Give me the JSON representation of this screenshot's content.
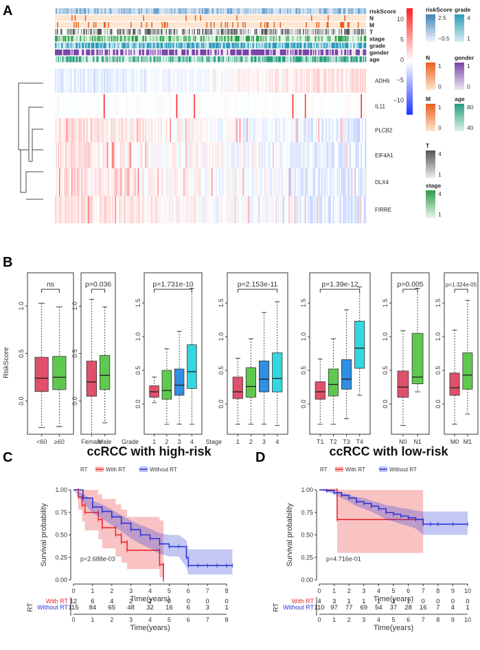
{
  "panels": {
    "a": "A",
    "b": "B",
    "c": "C",
    "d": "D"
  },
  "chart_data": [
    {
      "type": "heatmap",
      "annotation_tracks": [
        "riskScore",
        "N",
        "M",
        "T",
        "stage",
        "grade",
        "gender",
        "age"
      ],
      "genes": [
        "ADH6",
        "IL11",
        "PLCB2",
        "EIF4A1",
        "DLX4",
        "FIRRE"
      ],
      "color_key": {
        "ticks": [
          "10",
          "5",
          "0",
          "−5",
          "−10"
        ],
        "min": -10,
        "max": 10,
        "colors": [
          "#1f35ff",
          "#ffffff",
          "#ff2020"
        ]
      },
      "legends": [
        {
          "title": "riskScore",
          "labels": [
            "2.5",
            "−0.5"
          ],
          "colors": [
            "#3d84b8",
            "#f4f4fb"
          ]
        },
        {
          "title": "grade",
          "labels": [
            "4",
            "1"
          ],
          "colors": [
            "#2b9ab8",
            "#d9eef3"
          ]
        },
        {
          "title": "N",
          "labels": [
            "1",
            "0"
          ],
          "colors": [
            "#e8601c",
            "#fde6d2"
          ]
        },
        {
          "title": "gender",
          "labels": [
            "1",
            "0"
          ],
          "colors": [
            "#7a45a8",
            "#efe6f5"
          ]
        },
        {
          "title": "M",
          "labels": [
            "1",
            "0"
          ],
          "colors": [
            "#e8601c",
            "#fde6d2"
          ]
        },
        {
          "title": "age",
          "labels": [
            "80",
            "40"
          ],
          "colors": [
            "#2a9d7e",
            "#dff2ec"
          ]
        },
        {
          "title": "T",
          "labels": [
            "4",
            "1"
          ],
          "colors": [
            "#555555",
            "#ececec"
          ]
        },
        {
          "title": "stage",
          "labels": [
            "4",
            "1"
          ],
          "colors": [
            "#2e9c4a",
            "#e6f5e9"
          ]
        }
      ]
    },
    {
      "type": "box",
      "ylabel": "RiskScore",
      "groups": [
        {
          "pvalue": "ns",
          "categories": [
            "<60",
            "≥60"
          ],
          "xlabel": "",
          "ylim": [
            -0.35,
            1.35
          ],
          "yticks": [
            0.0,
            0.5,
            1.0
          ],
          "ytick_labels": [
            "0.0",
            "0.5",
            "1.0"
          ],
          "boxes": [
            {
              "q1": 0.1,
              "median": 0.24,
              "q3": 0.46,
              "low": -0.28,
              "high": 1.03,
              "color": "#e0506a"
            },
            {
              "q1": 0.12,
              "median": 0.25,
              "q3": 0.47,
              "low": -0.27,
              "high": 0.99,
              "color": "#5fc94f"
            }
          ]
        },
        {
          "pvalue": "p=0.036",
          "categories": [
            "Female",
            "Male"
          ],
          "xlabel": "",
          "ylim": [
            -0.35,
            1.35
          ],
          "yticks": [
            0.0,
            0.5,
            1.0
          ],
          "ytick_labels": [
            "0.0",
            "0.5",
            "1.0"
          ],
          "boxes": [
            {
              "q1": 0.05,
              "median": 0.2,
              "q3": 0.42,
              "low": -0.35,
              "high": 1.07,
              "color": "#e0506a"
            },
            {
              "q1": 0.12,
              "median": 0.27,
              "q3": 0.48,
              "low": -0.23,
              "high": 0.99,
              "color": "#5fc94f"
            }
          ]
        },
        {
          "pvalue": "p=1.731e-10",
          "categories": [
            "1",
            "2",
            "3",
            "4"
          ],
          "xlabel": "Grade",
          "ylim": [
            -0.45,
            1.95
          ],
          "yticks": [
            0.0,
            0.5,
            1.0,
            1.5
          ],
          "ytick_labels": [
            "0.0",
            "0.5",
            "1.0",
            "1.5"
          ],
          "boxes": [
            {
              "q1": 0.1,
              "median": 0.18,
              "q3": 0.27,
              "low": 0.02,
              "high": 0.4,
              "color": "#e0506a"
            },
            {
              "q1": 0.07,
              "median": 0.2,
              "q3": 0.5,
              "low": -0.3,
              "high": 0.82,
              "color": "#5fc94f"
            },
            {
              "q1": 0.13,
              "median": 0.28,
              "q3": 0.52,
              "low": -0.3,
              "high": 1.08,
              "color": "#2f8fe0"
            },
            {
              "q1": 0.23,
              "median": 0.48,
              "q3": 0.88,
              "low": -0.3,
              "high": 1.72,
              "color": "#33d7e0"
            }
          ]
        },
        {
          "pvalue": "p=2.153e-11",
          "categories": [
            "1",
            "2",
            "3",
            "4"
          ],
          "xlabel": "Stage",
          "ylim": [
            -0.45,
            1.95
          ],
          "yticks": [
            0.0,
            0.5,
            1.0,
            1.5
          ],
          "ytick_labels": [
            "0.0",
            "0.5",
            "1.0",
            "1.5"
          ],
          "boxes": [
            {
              "q1": 0.08,
              "median": 0.18,
              "q3": 0.4,
              "low": -0.3,
              "high": 0.68,
              "color": "#e0506a"
            },
            {
              "q1": 0.1,
              "median": 0.26,
              "q3": 0.54,
              "low": -0.3,
              "high": 0.97,
              "color": "#5fc94f"
            },
            {
              "q1": 0.18,
              "median": 0.37,
              "q3": 0.64,
              "low": -0.3,
              "high": 1.36,
              "color": "#2f8fe0"
            },
            {
              "q1": 0.18,
              "median": 0.38,
              "q3": 0.76,
              "low": -0.32,
              "high": 1.52,
              "color": "#33d7e0"
            }
          ]
        },
        {
          "pvalue": "p=1.39e-12",
          "categories": [
            "T1",
            "T2",
            "T3",
            "T4"
          ],
          "xlabel": "",
          "ylim": [
            -0.45,
            1.95
          ],
          "yticks": [
            0.0,
            0.5,
            1.0,
            1.5
          ],
          "ytick_labels": [
            "0.0",
            "0.5",
            "1.0",
            "1.5"
          ],
          "boxes": [
            {
              "q1": 0.07,
              "median": 0.18,
              "q3": 0.33,
              "low": -0.3,
              "high": 0.67,
              "color": "#e0506a"
            },
            {
              "q1": 0.12,
              "median": 0.29,
              "q3": 0.52,
              "low": -0.3,
              "high": 0.97,
              "color": "#5fc94f"
            },
            {
              "q1": 0.22,
              "median": 0.37,
              "q3": 0.66,
              "low": -0.22,
              "high": 1.4,
              "color": "#2f8fe0"
            },
            {
              "q1": 0.53,
              "median": 0.83,
              "q3": 1.23,
              "low": 0.13,
              "high": 1.74,
              "color": "#33d7e0"
            }
          ]
        },
        {
          "pvalue": "p=0.005",
          "categories": [
            "N0",
            "N1"
          ],
          "xlabel": "",
          "ylim": [
            -0.45,
            1.95
          ],
          "yticks": [
            0.0,
            0.5,
            1.0,
            1.5
          ],
          "ytick_labels": [
            "0.0",
            "0.5",
            "1.0",
            "1.5"
          ],
          "boxes": [
            {
              "q1": 0.1,
              "median": 0.25,
              "q3": 0.49,
              "low": -0.32,
              "high": 1.09,
              "color": "#e0506a"
            },
            {
              "q1": 0.3,
              "median": 0.4,
              "q3": 1.05,
              "low": 0.18,
              "high": 1.72,
              "color": "#5fc94f"
            }
          ]
        },
        {
          "pvalue": "p=1.324e-05",
          "categories": [
            "M0",
            "M1"
          ],
          "xlabel": "",
          "ylim": [
            -0.45,
            1.95
          ],
          "yticks": [
            0.0,
            0.5,
            1.0,
            1.5
          ],
          "ytick_labels": [
            "0.0",
            "0.5",
            "1.0",
            "1.5"
          ],
          "boxes": [
            {
              "q1": 0.13,
              "median": 0.24,
              "q3": 0.46,
              "low": -0.3,
              "high": 1.1,
              "color": "#e0506a"
            },
            {
              "q1": 0.22,
              "median": 0.43,
              "q3": 0.76,
              "low": -0.15,
              "high": 1.54,
              "color": "#5fc94f"
            }
          ]
        }
      ]
    },
    {
      "type": "line",
      "title": "ccRCC with high-risk",
      "legend_title": "RT",
      "xlabel": "Time(years)",
      "ylabel": "Survival probability",
      "xlim": [
        0,
        8
      ],
      "ylim": [
        0,
        1
      ],
      "xticks": [
        0,
        1,
        2,
        3,
        4,
        5,
        6,
        7,
        8
      ],
      "ytick_labels": [
        "0.00",
        "0.25",
        "0.50",
        "0.75",
        "1.00"
      ],
      "pvalue": "p=2.688e-03",
      "series": [
        {
          "name": "With RT",
          "color": "#e8262b",
          "x": [
            0,
            0.25,
            0.25,
            0.45,
            0.45,
            0.6,
            0.6,
            1.3,
            1.3,
            1.5,
            1.5,
            2.2,
            2.2,
            2.5,
            2.5,
            2.8,
            2.8,
            4.5,
            4.5,
            4.7,
            4.7
          ],
          "y": [
            1.0,
            1.0,
            0.92,
            0.92,
            0.83,
            0.83,
            0.75,
            0.75,
            0.67,
            0.67,
            0.58,
            0.58,
            0.5,
            0.5,
            0.42,
            0.42,
            0.33,
            0.33,
            0.17,
            0.17,
            0.0
          ],
          "ci_lower": [
            1.0,
            1.0,
            0.78,
            0.78,
            0.65,
            0.65,
            0.55,
            0.55,
            0.45,
            0.45,
            0.35,
            0.35,
            0.26,
            0.26,
            0.19,
            0.19,
            0.12,
            0.12,
            0.03,
            0.03,
            0.0
          ],
          "ci_upper": [
            1.0,
            1.0,
            1.0,
            1.0,
            1.0,
            1.0,
            1.0,
            1.0,
            0.95,
            0.95,
            0.9,
            0.9,
            0.84,
            0.84,
            0.78,
            0.78,
            0.7,
            0.7,
            0.66,
            0.66,
            0.66
          ]
        },
        {
          "name": "Without RT",
          "color": "#2b35d6",
          "x": [
            0,
            0.5,
            1.0,
            1.5,
            2.0,
            2.5,
            3.0,
            3.5,
            4.0,
            4.5,
            5.0,
            5.5,
            5.9,
            6.0,
            6.5,
            7.0,
            7.5,
            8.0,
            8.3
          ],
          "y": [
            1.0,
            0.91,
            0.81,
            0.76,
            0.7,
            0.63,
            0.56,
            0.5,
            0.46,
            0.4,
            0.37,
            0.37,
            0.25,
            0.16,
            0.16,
            0.16,
            0.16,
            0.16,
            0.16
          ],
          "ci_lower": [
            1.0,
            0.86,
            0.74,
            0.68,
            0.61,
            0.54,
            0.46,
            0.4,
            0.35,
            0.29,
            0.26,
            0.26,
            0.14,
            0.06,
            0.06,
            0.06,
            0.06,
            0.06,
            0.06
          ],
          "ci_upper": [
            1.0,
            0.96,
            0.88,
            0.84,
            0.78,
            0.72,
            0.66,
            0.61,
            0.57,
            0.52,
            0.5,
            0.5,
            0.44,
            0.34,
            0.34,
            0.34,
            0.34,
            0.34,
            0.34
          ]
        }
      ],
      "risk_table": {
        "label": "RT",
        "xlabel": "Time(years)",
        "rows": [
          {
            "name": "With RT",
            "color": "#e8262b",
            "values": [
              "12",
              "6",
              "4",
              "2",
              "2",
              "0",
              "0",
              "0",
              "0"
            ]
          },
          {
            "name": "Without RT",
            "color": "#2b35d6",
            "values": [
              "115",
              "84",
              "65",
              "48",
              "32",
              "16",
              "6",
              "3",
              "1"
            ]
          }
        ]
      }
    },
    {
      "type": "line",
      "title": "ccRCC with low-risk",
      "legend_title": "RT",
      "xlabel": "Time(years)",
      "ylabel": "Survival probability",
      "xlim": [
        0,
        10
      ],
      "ylim": [
        0,
        1
      ],
      "xticks": [
        0,
        1,
        2,
        3,
        4,
        5,
        6,
        7,
        8,
        9,
        10
      ],
      "ytick_labels": [
        "0.00",
        "0.25",
        "0.50",
        "0.75",
        "1.00"
      ],
      "pvalue": "p=4.716e-01",
      "series": [
        {
          "name": "With RT",
          "color": "#e8262b",
          "x": [
            0,
            1.2,
            1.2,
            7.0
          ],
          "y": [
            1.0,
            1.0,
            0.67,
            0.67
          ],
          "ci_lower": [
            1.0,
            1.0,
            0.3,
            0.3
          ],
          "ci_upper": [
            1.0,
            1.0,
            1.0,
            1.0
          ]
        },
        {
          "name": "Without RT",
          "color": "#2b35d6",
          "x": [
            0,
            0.5,
            1.0,
            1.5,
            2.0,
            2.5,
            3.0,
            3.5,
            4.0,
            4.5,
            5.0,
            5.5,
            6.0,
            6.5,
            7.0,
            7.5,
            8.0,
            9.0,
            10.0
          ],
          "y": [
            1.0,
            0.99,
            0.97,
            0.94,
            0.91,
            0.87,
            0.85,
            0.82,
            0.79,
            0.75,
            0.73,
            0.71,
            0.69,
            0.67,
            0.62,
            0.62,
            0.62,
            0.62,
            0.62
          ],
          "ci_lower": [
            1.0,
            0.98,
            0.95,
            0.91,
            0.87,
            0.82,
            0.79,
            0.76,
            0.72,
            0.67,
            0.65,
            0.62,
            0.6,
            0.57,
            0.5,
            0.5,
            0.5,
            0.5,
            0.5
          ],
          "ci_upper": [
            1.0,
            1.0,
            0.99,
            0.97,
            0.95,
            0.92,
            0.91,
            0.88,
            0.86,
            0.83,
            0.82,
            0.8,
            0.79,
            0.77,
            0.76,
            0.76,
            0.76,
            0.76,
            0.76
          ]
        }
      ],
      "risk_table": {
        "label": "RT",
        "xlabel": "Time(years)",
        "rows": [
          {
            "name": "With RT",
            "color": "#e8262b",
            "values": [
              "4",
              "3",
              "1",
              "1",
              "1",
              "1",
              "1",
              "0",
              "0",
              "0",
              "0"
            ]
          },
          {
            "name": "Without RT",
            "color": "#2b35d6",
            "values": [
              "110",
              "97",
              "77",
              "69",
              "54",
              "37",
              "28",
              "16",
              "7",
              "4",
              "1"
            ]
          }
        ]
      }
    }
  ]
}
